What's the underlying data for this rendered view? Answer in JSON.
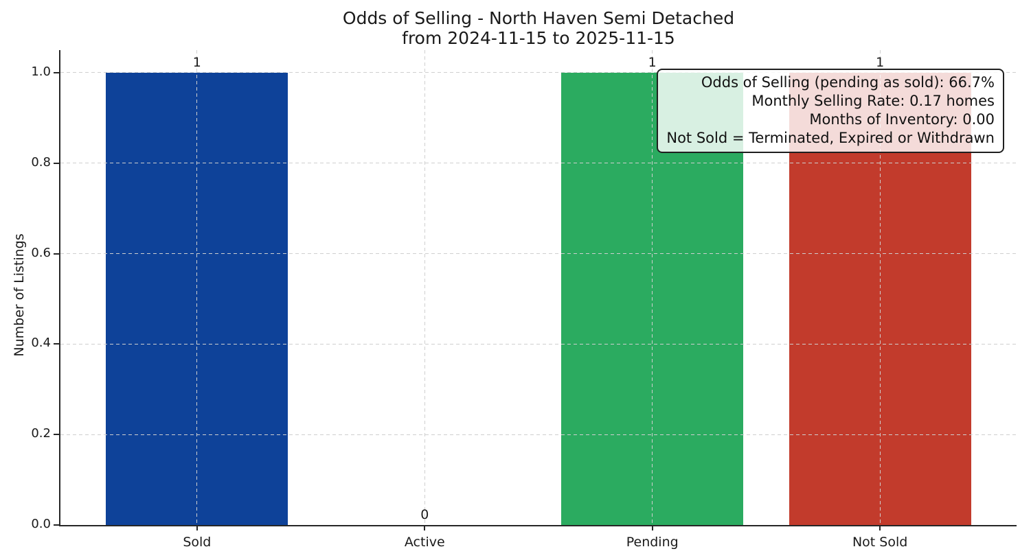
{
  "chart_data": {
    "type": "bar",
    "title": "Odds of Selling - North Haven Semi Detached",
    "subtitle": "from 2024-11-15 to 2025-11-15",
    "categories": [
      "Sold",
      "Active",
      "Pending",
      "Not Sold"
    ],
    "values": [
      1,
      0,
      1,
      1
    ],
    "bar_colors": [
      "#0e4299",
      "#2bab60",
      "#c23b2c"
    ],
    "colors_by_category": {
      "Sold": "#0e4299",
      "Active": null,
      "Pending": "#2bab60",
      "Not Sold": "#c23b2c"
    },
    "xlabel": "",
    "ylabel": "Number of Listings",
    "ylim": [
      0,
      1.05
    ],
    "yticks": [
      "0.0",
      "0.2",
      "0.4",
      "0.6",
      "0.8",
      "1.0"
    ],
    "grid": "dashed, horizontal and vertical, drawn above bars",
    "legend": "none",
    "annotation": {
      "lines": [
        "Odds of Selling (pending as sold): 66.7%",
        "Monthly Selling Rate: 0.17 homes",
        "Months of Inventory: 0.00",
        "Not Sold = Terminated, Expired or Withdrawn"
      ]
    }
  }
}
